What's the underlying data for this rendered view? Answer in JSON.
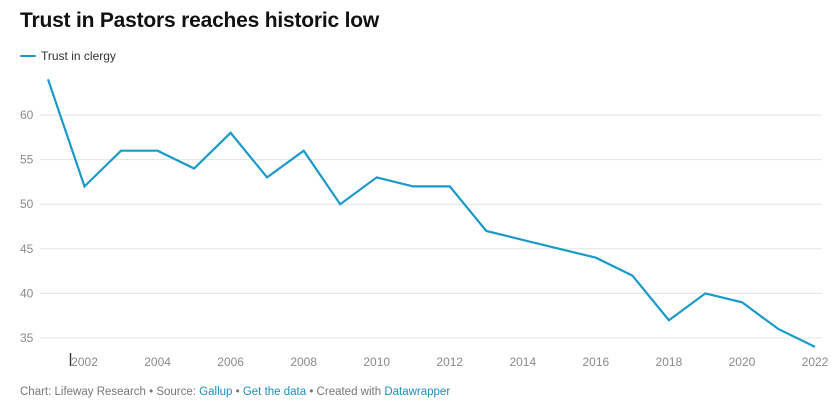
{
  "title": "Trust in Pastors reaches historic low",
  "chart_data": {
    "type": "line",
    "title": "Trust in Pastors reaches historic low",
    "xlabel": "",
    "ylabel": "",
    "x": [
      2001,
      2002,
      2003,
      2004,
      2005,
      2006,
      2007,
      2008,
      2009,
      2010,
      2011,
      2012,
      2013,
      2014,
      2015,
      2016,
      2017,
      2018,
      2019,
      2020,
      2021,
      2022
    ],
    "series": [
      {
        "name": "Trust in clergy",
        "color": "#1b9ac9",
        "values": [
          64,
          52,
          56,
          56,
          54,
          58,
          53,
          56,
          50,
          53,
          52,
          52,
          47,
          46,
          45,
          44,
          42,
          37,
          40,
          39,
          36,
          34
        ]
      }
    ],
    "y_ticks": [
      35,
      40,
      45,
      50,
      55,
      60
    ],
    "x_ticks": [
      2002,
      2004,
      2006,
      2008,
      2010,
      2012,
      2014,
      2016,
      2018,
      2020,
      2022
    ],
    "ylim": [
      33,
      65
    ],
    "xlim": [
      2001,
      2022
    ],
    "grid": "horizontal",
    "legend_position": "top-left"
  },
  "footer": {
    "prefix": "Chart: Lifeway Research • Source: ",
    "source_link": "Gallup",
    "sep1": " • ",
    "data_link": "Get the data",
    "sep2": " • Created with ",
    "tool_link": "Datawrapper"
  }
}
